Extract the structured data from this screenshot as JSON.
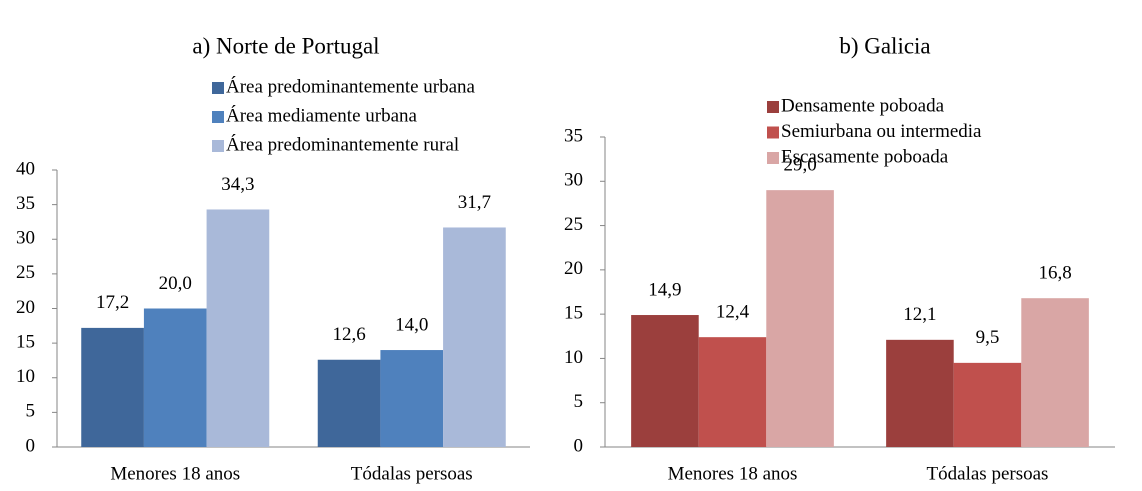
{
  "chart_data": [
    {
      "type": "bar",
      "title": "a) Norte de Portugal",
      "categories": [
        "Menores 18 anos",
        "Tódalas persoas"
      ],
      "series": [
        {
          "name": "Área predominantemente urbana",
          "color": "#3f679a",
          "values": [
            17.2,
            12.6
          ],
          "value_labels": [
            "17,2",
            "12,6"
          ]
        },
        {
          "name": "Área mediamente urbana",
          "color": "#4f81bd",
          "values": [
            20.0,
            14.0
          ],
          "value_labels": [
            "20,0",
            "14,0"
          ]
        },
        {
          "name": "Área predominantemente rural",
          "color": "#a9b9d9",
          "values": [
            34.3,
            31.7
          ],
          "value_labels": [
            "34,3",
            "31,7"
          ]
        }
      ],
      "ylim": [
        0,
        40
      ],
      "yticks": [
        0,
        5,
        10,
        15,
        20,
        25,
        30,
        35,
        40
      ],
      "grid": false
    },
    {
      "type": "bar",
      "title": "b) Galicia",
      "categories": [
        "Menores 18 anos",
        "Tódalas persoas"
      ],
      "series": [
        {
          "name": "Densamente poboada",
          "color": "#9b3f3d",
          "values": [
            14.9,
            12.1
          ],
          "value_labels": [
            "14,9",
            "12,1"
          ]
        },
        {
          "name": "Semiurbana ou intermedia",
          "color": "#c0504d",
          "values": [
            12.4,
            9.5
          ],
          "value_labels": [
            "12,4",
            "9,5"
          ]
        },
        {
          "name": "Escasamente poboada",
          "color": "#d9a6a5",
          "values": [
            29.0,
            16.8
          ],
          "value_labels": [
            "29,0",
            "16,8"
          ]
        }
      ],
      "ylim": [
        0,
        35
      ],
      "yticks": [
        0,
        5,
        10,
        15,
        20,
        25,
        30,
        35
      ],
      "grid": false
    }
  ]
}
